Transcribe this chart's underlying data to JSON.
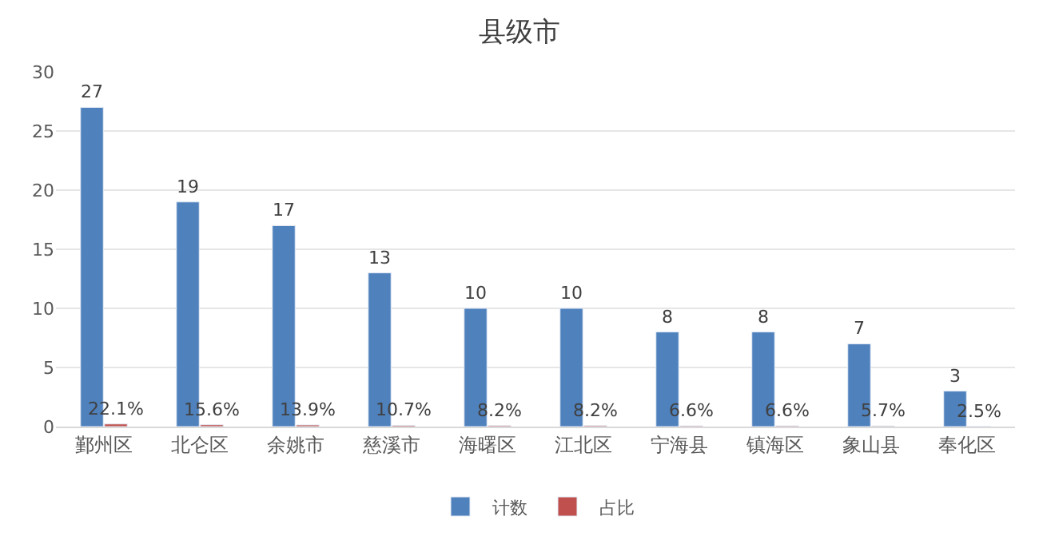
{
  "chart_data": {
    "type": "bar",
    "title": "县级市",
    "categories": [
      "鄞州区",
      "北仑区",
      "余姚市",
      "慈溪市",
      "海曙区",
      "江北区",
      "宁海县",
      "镇海区",
      "象山县",
      "奉化区"
    ],
    "series": [
      {
        "name": "计数",
        "color": "#4f81bd",
        "values": [
          27,
          19,
          17,
          13,
          10,
          10,
          8,
          8,
          7,
          3
        ],
        "value_labels": [
          "27",
          "19",
          "17",
          "13",
          "10",
          "10",
          "8",
          "8",
          "7",
          "3"
        ]
      },
      {
        "name": "占比",
        "color": "#c0504d",
        "values": [
          0.221,
          0.156,
          0.139,
          0.107,
          0.082,
          0.082,
          0.066,
          0.066,
          0.057,
          0.025
        ],
        "value_labels": [
          "22.1%",
          "15.6%",
          "13.9%",
          "10.7%",
          "8.2%",
          "8.2%",
          "6.6%",
          "6.6%",
          "5.7%",
          "2.5%"
        ]
      }
    ],
    "ylim": [
      0,
      30
    ],
    "yticks": [
      0,
      5,
      10,
      15,
      20,
      25,
      30
    ],
    "grid": "y",
    "legend": "bottom"
  }
}
